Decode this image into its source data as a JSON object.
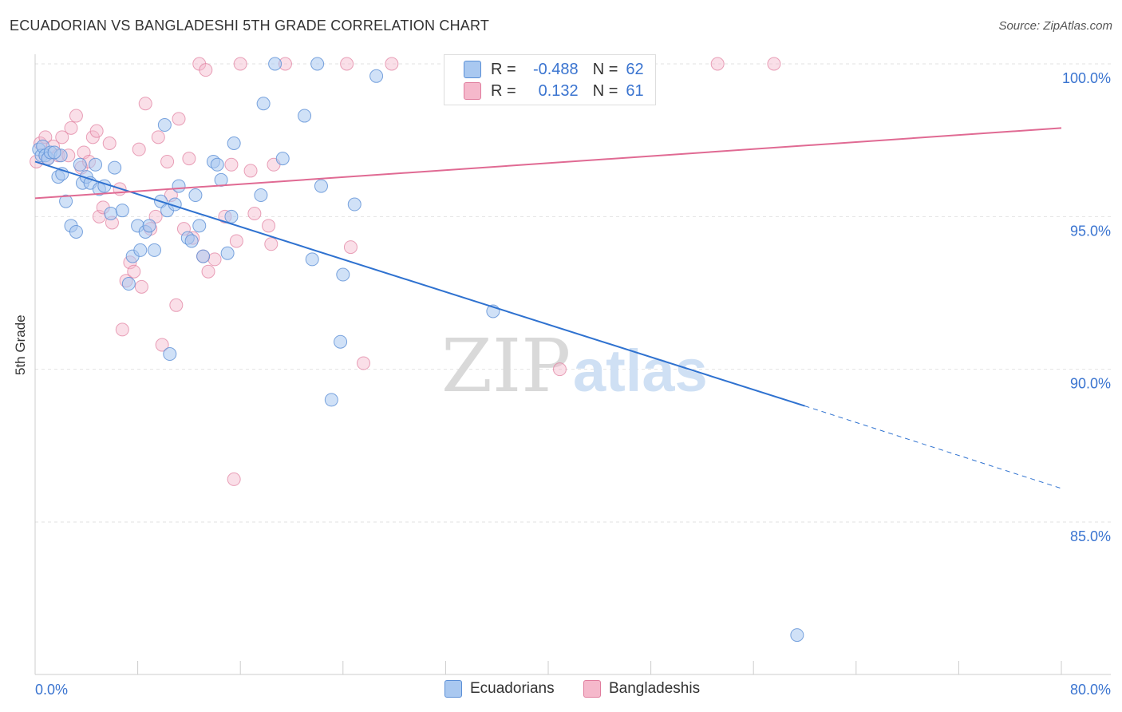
{
  "title": "ECUADORIAN VS BANGLADESHI 5TH GRADE CORRELATION CHART",
  "source": "Source: ZipAtlas.com",
  "watermark": {
    "zip": "ZIP",
    "atlas": "atlas"
  },
  "legend_top": {
    "rows": [
      {
        "r_label": "R =",
        "r_value": "-0.488",
        "n_label": "N =",
        "n_value": "62"
      },
      {
        "r_label": "R =",
        "r_value": "0.132",
        "n_label": "N =",
        "n_value": "61"
      }
    ]
  },
  "colors": {
    "blue_fill": "#a9c8f0",
    "blue_stroke": "#5b8fd6",
    "blue_line": "#2f72d0",
    "pink_fill": "#f5b8cb",
    "pink_stroke": "#e07c9d",
    "pink_line": "#e06a93",
    "axis_text": "#3a74d0",
    "grid": "#e2e2e2"
  },
  "chart_data": {
    "type": "scatter",
    "title": "ECUADORIAN VS BANGLADESHI 5TH GRADE CORRELATION CHART",
    "xlabel": "",
    "ylabel": "5th Grade",
    "xlim": [
      0,
      80
    ],
    "ylim": [
      80.5,
      100.8
    ],
    "x_tick_labels": [
      "0.0%",
      "80.0%"
    ],
    "y_ticks": [
      85,
      90,
      95,
      100
    ],
    "y_tick_labels": [
      "85.0%",
      "90.0%",
      "95.0%",
      "100.0%"
    ],
    "grid": true,
    "legend": "bottom-center",
    "series": [
      {
        "name": "Ecuadorians",
        "r": -0.488,
        "n": 62,
        "trend": {
          "x": [
            0,
            60,
            80
          ],
          "y": [
            96.8,
            88.8,
            86.1
          ],
          "solid_until": 60
        },
        "points": [
          [
            0.3,
            97.2
          ],
          [
            0.5,
            97.0
          ],
          [
            0.6,
            97.3
          ],
          [
            0.8,
            97.0
          ],
          [
            1.0,
            96.9
          ],
          [
            1.2,
            97.1
          ],
          [
            1.8,
            96.3
          ],
          [
            2.1,
            96.4
          ],
          [
            2.4,
            95.5
          ],
          [
            2.8,
            94.7
          ],
          [
            3.2,
            94.5
          ],
          [
            3.5,
            96.7
          ],
          [
            3.7,
            96.1
          ],
          [
            4.0,
            96.3
          ],
          [
            4.3,
            96.1
          ],
          [
            4.7,
            96.7
          ],
          [
            5.0,
            95.9
          ],
          [
            5.4,
            96.0
          ],
          [
            5.9,
            95.1
          ],
          [
            6.2,
            96.6
          ],
          [
            6.8,
            95.2
          ],
          [
            7.3,
            92.8
          ],
          [
            7.6,
            93.7
          ],
          [
            8.0,
            94.7
          ],
          [
            8.2,
            93.9
          ],
          [
            8.6,
            94.5
          ],
          [
            8.9,
            94.7
          ],
          [
            9.3,
            93.9
          ],
          [
            9.8,
            95.5
          ],
          [
            10.1,
            98.0
          ],
          [
            10.3,
            95.2
          ],
          [
            10.5,
            90.5
          ],
          [
            10.9,
            95.4
          ],
          [
            11.2,
            96.0
          ],
          [
            11.9,
            94.3
          ],
          [
            12.2,
            94.2
          ],
          [
            12.5,
            95.7
          ],
          [
            12.8,
            94.7
          ],
          [
            13.1,
            93.7
          ],
          [
            13.9,
            96.8
          ],
          [
            14.2,
            96.7
          ],
          [
            14.5,
            96.2
          ],
          [
            15.0,
            93.8
          ],
          [
            15.3,
            95.0
          ],
          [
            15.5,
            97.4
          ],
          [
            17.6,
            95.7
          ],
          [
            17.8,
            98.7
          ],
          [
            18.7,
            100.0
          ],
          [
            19.3,
            96.9
          ],
          [
            21.0,
            98.3
          ],
          [
            21.6,
            93.6
          ],
          [
            22.0,
            100.0
          ],
          [
            22.3,
            96.0
          ],
          [
            23.1,
            89.0
          ],
          [
            23.8,
            90.9
          ],
          [
            24.0,
            93.1
          ],
          [
            24.9,
            95.4
          ],
          [
            26.6,
            99.6
          ],
          [
            35.7,
            91.9
          ],
          [
            59.4,
            81.3
          ],
          [
            2.0,
            97.0
          ],
          [
            1.5,
            97.1
          ]
        ]
      },
      {
        "name": "Bangladeshis",
        "r": 0.132,
        "n": 61,
        "trend": {
          "x": [
            0,
            80
          ],
          "y": [
            95.6,
            97.9
          ]
        },
        "points": [
          [
            0.1,
            96.8
          ],
          [
            0.4,
            97.4
          ],
          [
            0.8,
            97.6
          ],
          [
            1.0,
            96.9
          ],
          [
            1.4,
            97.3
          ],
          [
            1.8,
            97.0
          ],
          [
            2.1,
            97.6
          ],
          [
            2.6,
            97.0
          ],
          [
            2.8,
            97.9
          ],
          [
            3.2,
            98.3
          ],
          [
            3.6,
            96.6
          ],
          [
            3.8,
            97.1
          ],
          [
            4.2,
            96.8
          ],
          [
            4.5,
            97.6
          ],
          [
            4.8,
            97.8
          ],
          [
            5.0,
            95.0
          ],
          [
            5.3,
            95.3
          ],
          [
            5.8,
            97.4
          ],
          [
            6.0,
            94.8
          ],
          [
            6.6,
            95.9
          ],
          [
            6.8,
            91.3
          ],
          [
            7.1,
            92.9
          ],
          [
            7.4,
            93.5
          ],
          [
            7.7,
            93.2
          ],
          [
            8.1,
            97.2
          ],
          [
            8.3,
            92.7
          ],
          [
            8.6,
            98.7
          ],
          [
            9.0,
            94.6
          ],
          [
            9.4,
            95.0
          ],
          [
            9.6,
            97.6
          ],
          [
            9.9,
            90.8
          ],
          [
            10.3,
            96.8
          ],
          [
            10.6,
            95.7
          ],
          [
            11.0,
            92.1
          ],
          [
            11.2,
            98.2
          ],
          [
            11.6,
            94.6
          ],
          [
            12.0,
            96.9
          ],
          [
            12.3,
            94.3
          ],
          [
            12.8,
            100.0
          ],
          [
            13.1,
            93.7
          ],
          [
            13.3,
            99.8
          ],
          [
            13.5,
            93.2
          ],
          [
            14.0,
            93.6
          ],
          [
            14.8,
            95.0
          ],
          [
            15.3,
            96.7
          ],
          [
            15.5,
            86.4
          ],
          [
            15.7,
            94.2
          ],
          [
            16.0,
            100.0
          ],
          [
            16.8,
            96.5
          ],
          [
            17.1,
            95.1
          ],
          [
            18.2,
            94.7
          ],
          [
            18.4,
            94.1
          ],
          [
            18.6,
            96.7
          ],
          [
            19.5,
            100.0
          ],
          [
            24.3,
            100.0
          ],
          [
            24.6,
            94.0
          ],
          [
            25.6,
            90.2
          ],
          [
            27.8,
            100.0
          ],
          [
            40.9,
            90.0
          ],
          [
            53.2,
            100.0
          ],
          [
            57.6,
            100.0
          ]
        ]
      }
    ]
  },
  "bottom_legend": [
    {
      "label": "Ecuadorians"
    },
    {
      "label": "Bangladeshis"
    }
  ]
}
